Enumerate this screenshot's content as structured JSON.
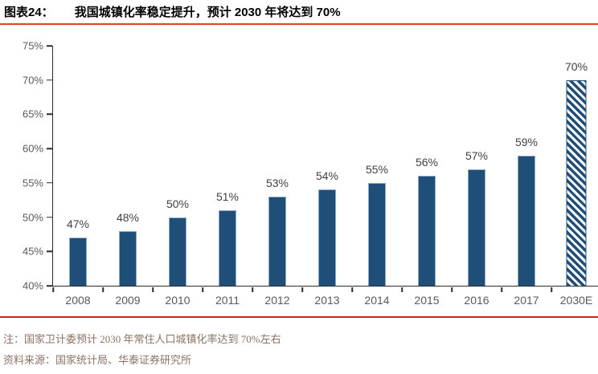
{
  "header": {
    "fig_label": "图表24：",
    "title": "我国城镇化率稳定提升，预计 2030 年将达到 70%"
  },
  "chart_data": {
    "type": "bar",
    "title": "我国城镇化率稳定提升，预计 2030 年将达到 70%",
    "categories": [
      "2008",
      "2009",
      "2010",
      "2011",
      "2012",
      "2013",
      "2014",
      "2015",
      "2016",
      "2017",
      "2030E"
    ],
    "values": [
      47,
      48,
      50,
      51,
      53,
      54,
      55,
      56,
      57,
      59,
      70
    ],
    "bar_labels": [
      "47%",
      "48%",
      "50%",
      "51%",
      "53%",
      "54%",
      "55%",
      "56%",
      "57%",
      "59%",
      "70%"
    ],
    "unit": "%",
    "ylim": [
      40,
      75
    ],
    "ytick_step": 5,
    "ytick_labels_top_to_bottom": [
      "75%",
      "70%",
      "65%",
      "60%",
      "55%",
      "50%",
      "45%",
      "40%"
    ],
    "grid": false,
    "legend": null,
    "hatched_category": "2030E",
    "xlabel": "",
    "ylabel": ""
  },
  "footer": {
    "note": "注：国家卫计委预计 2030 年常住人口城镇化率达到 70%左右",
    "source": "资料来源：国家统计局、华泰证券研究所"
  },
  "colors": {
    "bar_navy": "#1F4E79",
    "rule_top_red": "#E2402C",
    "rule_bottom_red": "#C9251B",
    "axis_line": "#2B2B2B",
    "tick_label_gray": "#595959",
    "value_label_gray": "#3F3F3F",
    "note_brown": "#8B7264"
  }
}
